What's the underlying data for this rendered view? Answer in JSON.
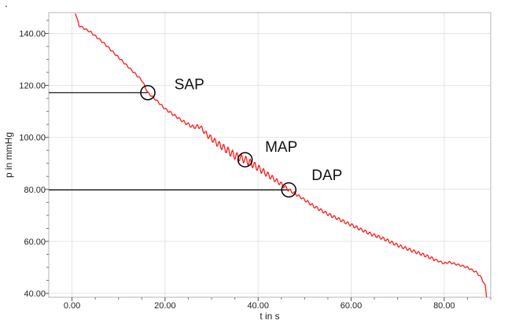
{
  "corner_text": ".",
  "chart_data": {
    "type": "line",
    "title": "",
    "xlabel": "t in s",
    "ylabel": "p in mmHg",
    "xlim": [
      -5,
      90
    ],
    "ylim": [
      38.5,
      148
    ],
    "x_ticks": [
      0,
      20,
      40,
      60,
      80
    ],
    "x_tick_labels": [
      "0.00",
      "20.00",
      "40.00",
      "60.00",
      "80.00"
    ],
    "y_ticks": [
      40,
      60,
      80,
      100,
      120,
      140
    ],
    "y_tick_labels": [
      "40.00",
      "60.00",
      "80.00",
      "100.00",
      "120.00",
      "140.00"
    ],
    "grid": true,
    "series": [
      {
        "color": "#ff1a1a",
        "x": [
          0.7,
          1.5,
          3,
          4,
          5,
          7,
          9,
          11,
          13,
          15,
          16.3,
          18,
          20,
          22,
          24,
          26,
          27.5,
          29,
          31,
          33,
          35,
          37.2,
          39,
          41,
          43,
          45,
          46.6,
          48,
          50,
          52,
          55,
          58,
          61,
          64,
          67,
          70,
          73,
          76,
          78,
          80,
          81,
          83,
          85,
          86,
          87,
          88,
          88.8,
          89,
          89.1
        ],
        "y": [
          148,
          143,
          141.5,
          140.5,
          139,
          136,
          132.5,
          129,
          125.5,
          122,
          117.2,
          114.5,
          111,
          108.5,
          106,
          104,
          104.2,
          101,
          98,
          95.5,
          93,
          91.4,
          89.5,
          87,
          84.5,
          82,
          79.8,
          78.3,
          76,
          73.5,
          70.5,
          68,
          65.5,
          63,
          61,
          58.5,
          56.5,
          54.5,
          53,
          51.5,
          52,
          51,
          50,
          49,
          48,
          46,
          43,
          40.5,
          38.5
        ]
      }
    ],
    "reference_lines": [
      {
        "x_start": -5,
        "x_end": 16.3,
        "y": 117.2
      },
      {
        "x_start": -5,
        "x_end": 46.6,
        "y": 79.8
      }
    ],
    "annotations": [
      {
        "text": "SAP",
        "x": 16.3,
        "y": 117.2,
        "text_x": 22,
        "text_y": 118.5
      },
      {
        "text": "MAP",
        "x": 37.2,
        "y": 91.4,
        "text_x": 41.5,
        "text_y": 94.5
      },
      {
        "text": "DAP",
        "x": 46.6,
        "y": 79.8,
        "text_x": 51.5,
        "text_y": 83.5
      }
    ]
  }
}
